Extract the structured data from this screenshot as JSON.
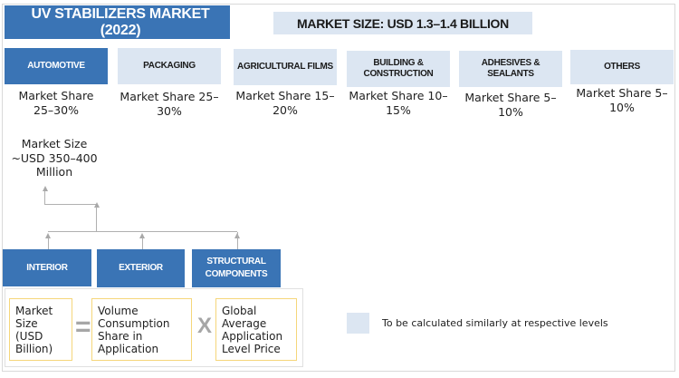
{
  "title": "UV STABILIZERS MARKET (2022)",
  "market_size": "MARKET SIZE: USD 1.3–1.4 BILLION",
  "categories": [
    {
      "label": "AUTOMOTIVE",
      "share": "Market Share 25–30%",
      "size": "Market Size ~USD 350–400 Million"
    },
    {
      "label": "PACKAGING",
      "share": "Market Share 25–30%"
    },
    {
      "label": "AGRICULTURAL FILMS",
      "share": "Market Share 15–20%"
    },
    {
      "label": "BUILDING & CONSTRUCTION",
      "share": "Market Share 10–15%"
    },
    {
      "label": "ADHESIVES & SEALANTS",
      "share": "Market Share 5–10%"
    },
    {
      "label": "OTHERS",
      "share": "Market Share 5–10%"
    }
  ],
  "subcategories": [
    "INTERIOR",
    "EXTERIOR",
    "STRUCTURAL COMPONENTS"
  ],
  "formula": {
    "left": "Market Size (USD Billion)",
    "equals": "=",
    "middle": "Volume Consumption Share in Application",
    "times": "X",
    "right": "Global Average Application Level Price"
  },
  "legend": "To be calculated similarly at respective levels",
  "colors": {
    "dark": "#3a74b5",
    "light": "#dce6f2",
    "formula_border": "#f5d67a"
  }
}
